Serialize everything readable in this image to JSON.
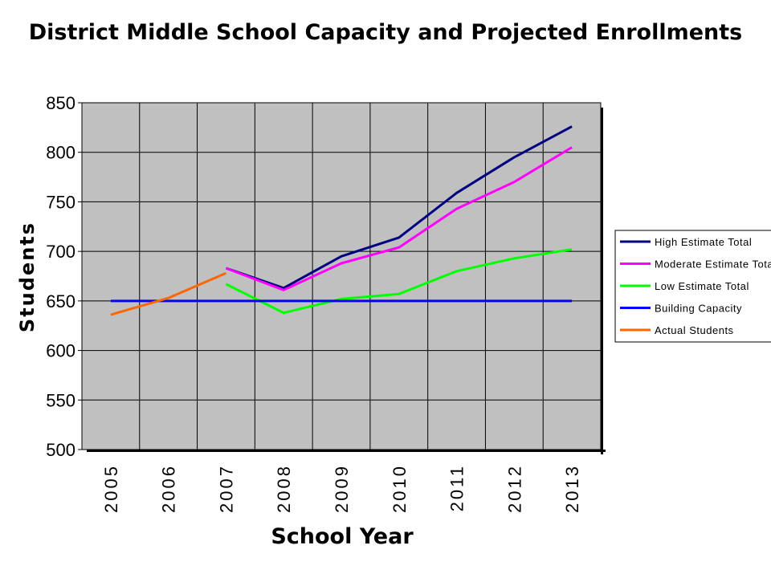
{
  "chart_data": {
    "type": "line",
    "title": "District Middle School Capacity and Projected Enrollments",
    "xlabel": "School Year",
    "ylabel": "Students",
    "categories": [
      "2005",
      "2006",
      "2007",
      "2008",
      "2009",
      "2010",
      "2011",
      "2012",
      "2013"
    ],
    "ylim": [
      500,
      850
    ],
    "yticks": [
      500,
      550,
      600,
      650,
      700,
      750,
      800,
      850
    ],
    "grid": true,
    "plot_background": "#c0c0c0",
    "legend_placement": "right",
    "series": [
      {
        "name": "High Estimate Total",
        "color": "#000080",
        "values": [
          null,
          null,
          683,
          663,
          695,
          714,
          759,
          795,
          826
        ]
      },
      {
        "name": "Moderate Estimate Total",
        "color": "#ff00ff",
        "values": [
          null,
          null,
          683,
          661,
          688,
          704,
          743,
          770,
          805
        ]
      },
      {
        "name": "Low Estimate Total",
        "color": "#00ff00",
        "values": [
          null,
          null,
          667,
          638,
          652,
          657,
          680,
          693,
          702
        ]
      },
      {
        "name": "Building Capacity",
        "color": "#0000ff",
        "values": [
          650,
          650,
          650,
          650,
          650,
          650,
          650,
          650,
          650
        ]
      },
      {
        "name": "Actual Students",
        "color": "#ff6600",
        "values": [
          636,
          653,
          678,
          null,
          null,
          null,
          null,
          null,
          null
        ]
      }
    ]
  }
}
